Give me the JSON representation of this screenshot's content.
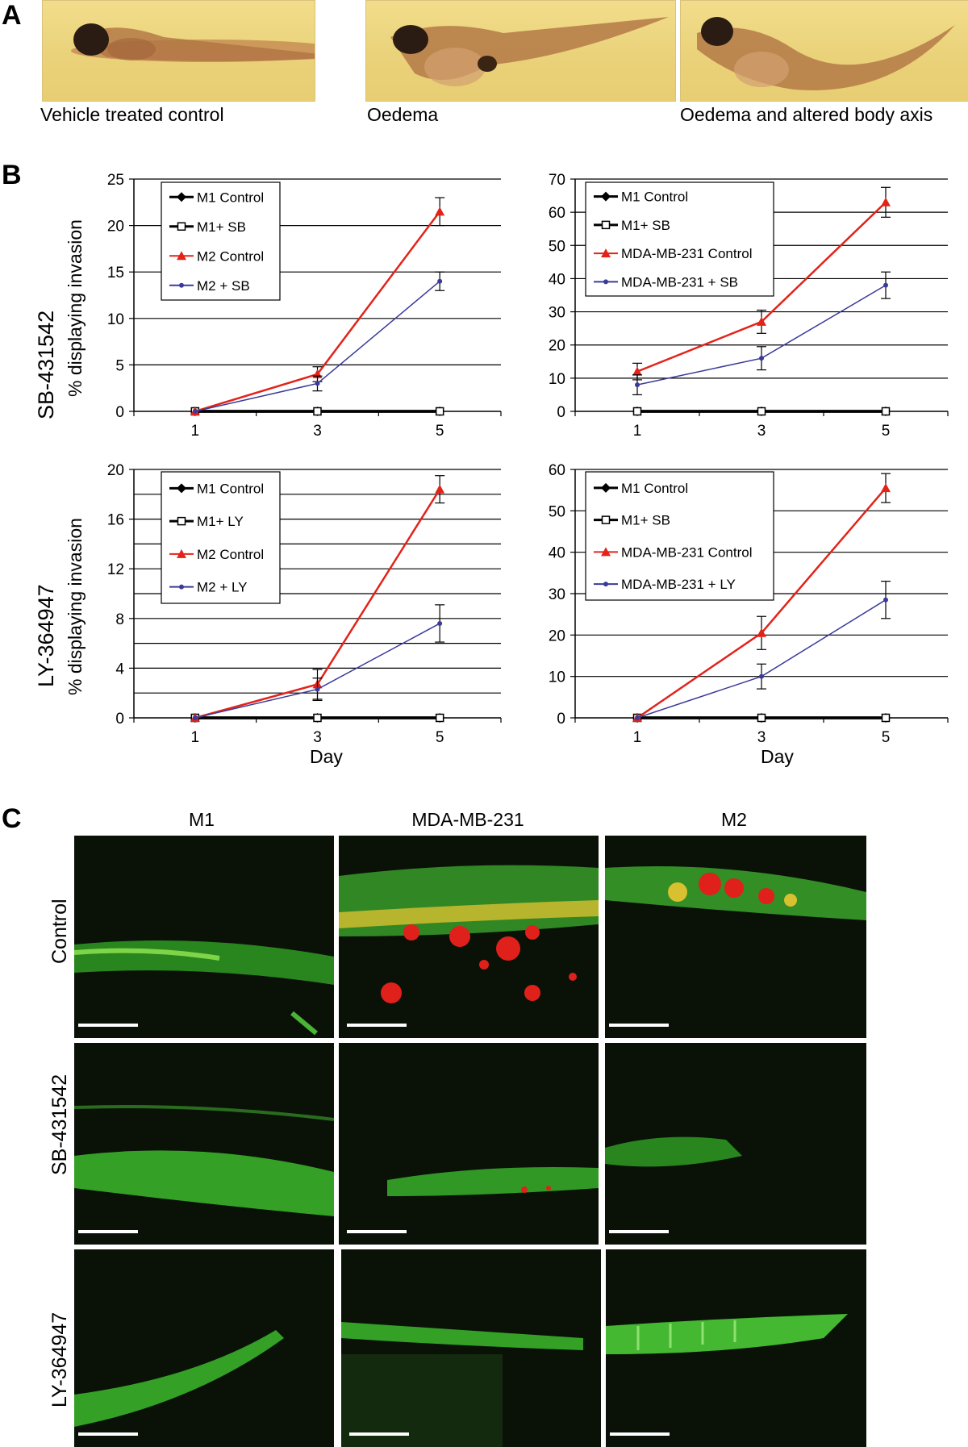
{
  "panel_labels": {
    "a": "A",
    "b": "B",
    "c": "C"
  },
  "panel_a": {
    "captions": [
      "Vehicle treated control",
      "Oedema",
      "Oedema and altered body axis"
    ]
  },
  "panel_b": {
    "row_labels": [
      {
        "drug": "SB-431542",
        "ylabel": "% displaying invasion"
      },
      {
        "drug": "LY-364947",
        "ylabel": "% displaying invasion"
      }
    ],
    "xlabel": "Day"
  },
  "panel_c": {
    "col_titles": [
      "M1",
      "MDA-MB-231",
      "M2"
    ],
    "row_labels": [
      "Control",
      "SB-431542",
      "LY-364947"
    ]
  },
  "colors": {
    "black": "#000000",
    "red": "#e2231a",
    "blue": "#3a3a9a"
  },
  "chart_data": [
    {
      "type": "line",
      "x": [
        1,
        3,
        5
      ],
      "ylim": [
        0,
        25
      ],
      "yticks": [
        0,
        5,
        10,
        15,
        20,
        25
      ],
      "series": [
        {
          "name": "M1 Control",
          "values": [
            0,
            0,
            0
          ],
          "color": "#000000",
          "marker": "diamond"
        },
        {
          "name": "M1+ SB",
          "values": [
            0,
            0,
            0
          ],
          "color": "#000000",
          "marker": "square-open"
        },
        {
          "name": "M2 Control",
          "values": [
            0,
            4,
            21.5
          ],
          "err": [
            0,
            0.8,
            1.5
          ],
          "color": "#e2231a",
          "marker": "triangle"
        },
        {
          "name": "M2 + SB",
          "values": [
            0,
            3,
            14
          ],
          "err": [
            0,
            0.8,
            1
          ],
          "color": "#3a3a9a",
          "marker": "dot"
        }
      ]
    },
    {
      "type": "line",
      "x": [
        1,
        3,
        5
      ],
      "ylim": [
        0,
        70
      ],
      "yticks": [
        0,
        10,
        20,
        30,
        40,
        50,
        60,
        70
      ],
      "series": [
        {
          "name": "M1 Control",
          "values": [
            0,
            0,
            0
          ],
          "color": "#000000",
          "marker": "diamond"
        },
        {
          "name": "M1+ SB",
          "values": [
            0,
            0,
            0
          ],
          "color": "#000000",
          "marker": "square-open"
        },
        {
          "name": "MDA-MB-231 Control",
          "values": [
            12,
            27,
            63
          ],
          "err": [
            2.5,
            3.5,
            4.5
          ],
          "color": "#e2231a",
          "marker": "triangle"
        },
        {
          "name": "MDA-MB-231 + SB",
          "values": [
            8,
            16,
            38
          ],
          "err": [
            3,
            3.5,
            4
          ],
          "color": "#3a3a9a",
          "marker": "dot"
        }
      ]
    },
    {
      "type": "line",
      "x": [
        1,
        3,
        5
      ],
      "ylim": [
        0,
        20
      ],
      "yticks": [
        0,
        4,
        8,
        12,
        16,
        20
      ],
      "gridlines": [
        2,
        4,
        6,
        8,
        10,
        12,
        14,
        16,
        18,
        20
      ],
      "series": [
        {
          "name": "M1 Control",
          "values": [
            0,
            0,
            0
          ],
          "color": "#000000",
          "marker": "diamond"
        },
        {
          "name": "M1+ LY",
          "values": [
            0,
            0,
            0
          ],
          "color": "#000000",
          "marker": "square-open"
        },
        {
          "name": "M2 Control",
          "values": [
            0,
            2.7,
            18.4
          ],
          "err": [
            0,
            1.2,
            1.1
          ],
          "color": "#e2231a",
          "marker": "triangle"
        },
        {
          "name": "M2 + LY",
          "values": [
            0,
            2.3,
            7.6
          ],
          "err": [
            0,
            0.9,
            1.5
          ],
          "color": "#3a3a9a",
          "marker": "dot"
        }
      ]
    },
    {
      "type": "line",
      "x": [
        1,
        3,
        5
      ],
      "ylim": [
        0,
        60
      ],
      "yticks": [
        0,
        10,
        20,
        30,
        40,
        50,
        60
      ],
      "series": [
        {
          "name": "M1 Control",
          "values": [
            0,
            0,
            0
          ],
          "color": "#000000",
          "marker": "diamond"
        },
        {
          "name": "M1+ SB",
          "values": [
            0,
            0,
            0
          ],
          "color": "#000000",
          "marker": "square-open"
        },
        {
          "name": "MDA-MB-231 Control",
          "values": [
            0,
            20.5,
            55.5
          ],
          "err": [
            0,
            4,
            3.5
          ],
          "color": "#e2231a",
          "marker": "triangle"
        },
        {
          "name": "MDA-MB-231 + LY",
          "values": [
            0,
            10,
            28.5
          ],
          "err": [
            0,
            3,
            4.5
          ],
          "color": "#3a3a9a",
          "marker": "dot"
        }
      ]
    }
  ]
}
